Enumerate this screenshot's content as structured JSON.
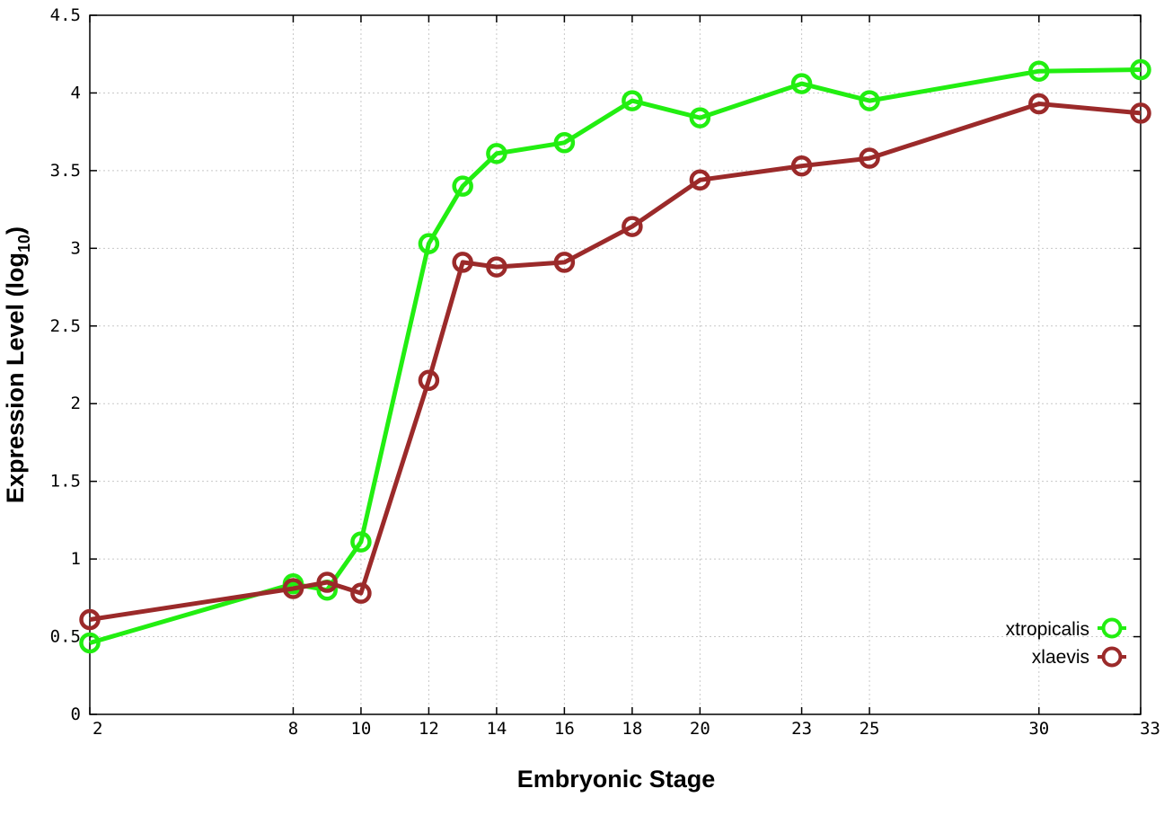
{
  "chart_data": {
    "type": "line",
    "title": "",
    "xlabel": "Embryonic Stage",
    "ylabel": {
      "text": "Expression Level (log",
      "subscript": "10",
      "suffix": ")"
    },
    "xlim": [
      2,
      33
    ],
    "ylim": [
      0,
      4.5
    ],
    "xticks": [
      2,
      8,
      10,
      12,
      14,
      16,
      18,
      20,
      23,
      25,
      30,
      33
    ],
    "yticks": [
      "0",
      "0.5",
      "1",
      "1.5",
      "2",
      "2.5",
      "3",
      "3.5",
      "4",
      "4.5"
    ],
    "grid": true,
    "legend_position": "bottom-right",
    "series": [
      {
        "name": "xtropicalis",
        "color": "#22ee11",
        "marker": "circle",
        "x": [
          2,
          8,
          9,
          10,
          12,
          13,
          14,
          16,
          18,
          20,
          23,
          25,
          30,
          33
        ],
        "y": [
          0.46,
          0.84,
          0.8,
          1.11,
          3.03,
          3.4,
          3.61,
          3.68,
          3.95,
          3.84,
          4.06,
          3.95,
          4.14,
          4.15
        ]
      },
      {
        "name": "xlaevis",
        "color": "#9b2a2a",
        "marker": "circle",
        "x": [
          2,
          8,
          9,
          10,
          12,
          13,
          14,
          16,
          18,
          20,
          23,
          25,
          30,
          33
        ],
        "y": [
          0.61,
          0.81,
          0.85,
          0.78,
          2.15,
          2.91,
          2.88,
          2.91,
          3.14,
          3.44,
          3.53,
          3.58,
          3.93,
          3.87
        ]
      }
    ]
  }
}
